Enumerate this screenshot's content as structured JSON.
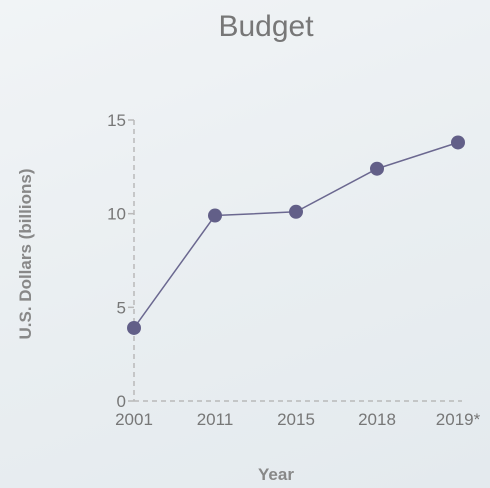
{
  "chart_data": {
    "type": "line",
    "title": "Budget",
    "xlabel": "Year",
    "ylabel": "U.S. Dollars (billions)",
    "categories": [
      "2001",
      "2011",
      "2015",
      "2018",
      "2019*"
    ],
    "series": [
      {
        "values": [
          3.9,
          9.9,
          10.1,
          12.4,
          13.8
        ]
      }
    ],
    "ylim": [
      0,
      15
    ],
    "yticks": [
      "0",
      "5",
      "10",
      "15"
    ],
    "grid": false,
    "legend": "none",
    "colors": {
      "line": "#6b6890",
      "marker": "#625f88",
      "axis": "#b9b9b9",
      "text": "#777777"
    }
  }
}
